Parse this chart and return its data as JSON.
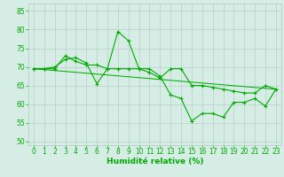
{
  "series1": {
    "x": [
      0,
      1,
      2,
      3,
      4,
      5,
      6,
      7,
      8,
      9,
      10,
      11,
      12,
      13,
      14,
      15,
      16,
      17,
      18,
      19,
      20,
      21,
      22,
      23
    ],
    "y": [
      69.5,
      69.5,
      69.5,
      73,
      71.5,
      70.5,
      70.5,
      69.5,
      79.5,
      77,
      69.5,
      69.5,
      67.5,
      62.5,
      61.5,
      55.5,
      57.5,
      57.5,
      56.5,
      60.5,
      60.5,
      61.5,
      59.5,
      64
    ]
  },
  "series2": {
    "x": [
      0,
      1,
      2,
      3,
      4,
      5,
      6,
      7,
      8,
      9,
      10,
      11,
      12,
      13,
      14,
      15,
      16,
      17,
      18,
      19,
      20,
      21,
      22,
      23
    ],
    "y": [
      69.5,
      69.5,
      70,
      72,
      72.5,
      71,
      65.5,
      69.5,
      69.5,
      69.5,
      69.5,
      68.5,
      67,
      69.5,
      69.5,
      65,
      65,
      64.5,
      64,
      63.5,
      63,
      63,
      65,
      64
    ]
  },
  "series3": {
    "x": [
      0,
      23
    ],
    "y": [
      69.5,
      64
    ]
  },
  "xlabel": "Humidité relative (%)",
  "xlim": [
    -0.5,
    23.5
  ],
  "ylim": [
    49,
    87
  ],
  "yticks": [
    50,
    55,
    60,
    65,
    70,
    75,
    80,
    85
  ],
  "xticks": [
    0,
    1,
    2,
    3,
    4,
    5,
    6,
    7,
    8,
    9,
    10,
    11,
    12,
    13,
    14,
    15,
    16,
    17,
    18,
    19,
    20,
    21,
    22,
    23
  ],
  "background_color": "#d5ede4",
  "grid_color": "#b0c8c0",
  "line_color": "#00aa00",
  "tick_color": "#00aa00",
  "xlabel_color": "#00aa00",
  "tick_fontsize": 5.5,
  "xlabel_fontsize": 6.5,
  "linewidth": 0.8,
  "markersize": 3.0
}
